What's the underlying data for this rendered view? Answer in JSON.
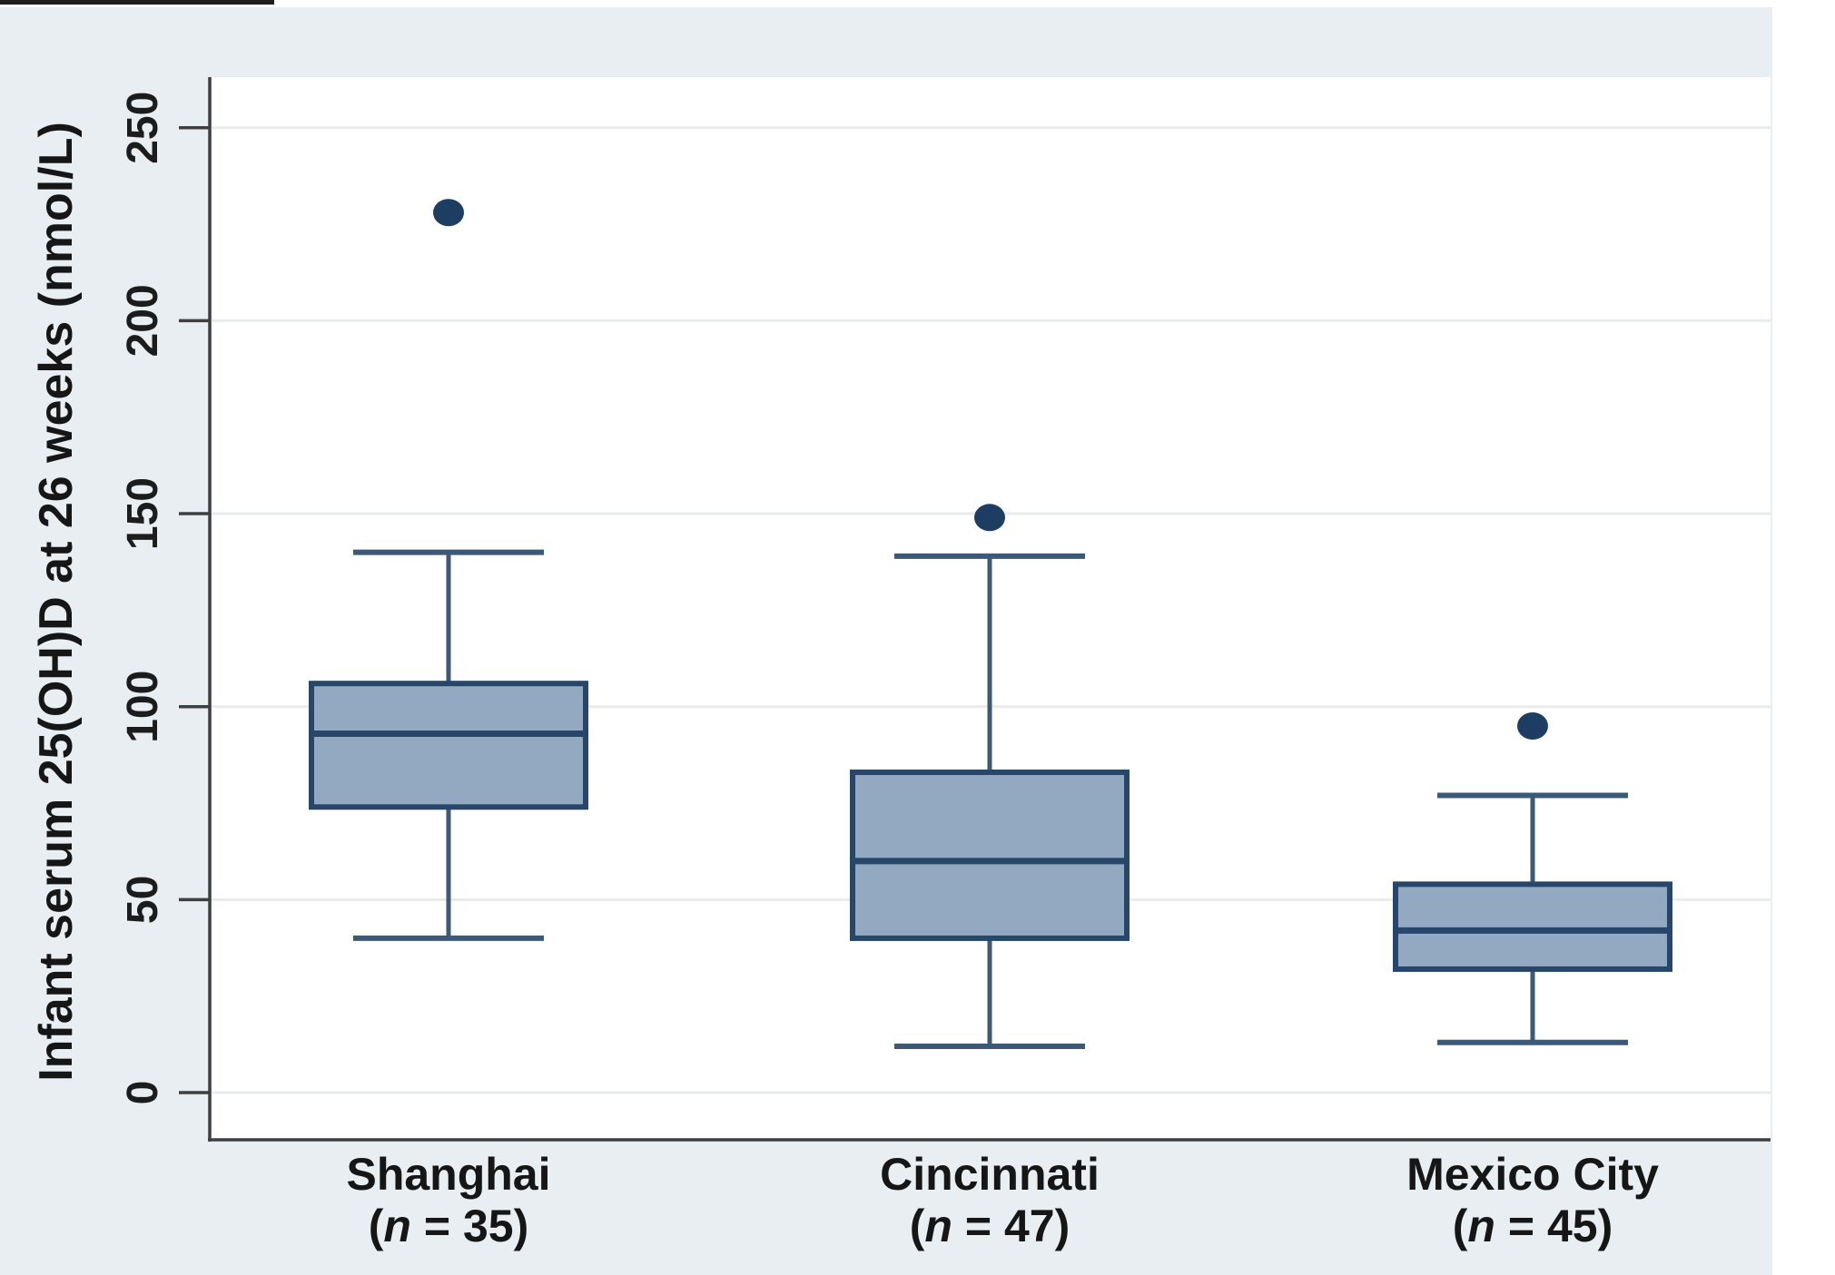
{
  "chart_data": {
    "type": "box",
    "title": "",
    "ylabel": "Infant serum 25(OH)D at 26 weeks (nmol/L)",
    "xlabel": "",
    "ylim": [
      -12,
      263
    ],
    "yticks": [
      0,
      50,
      100,
      150,
      200,
      250
    ],
    "grid": "horizontal",
    "legend": "none",
    "categories": [
      "Shanghai",
      "Cincinnati",
      "Mexico City"
    ],
    "groups": [
      {
        "label": "Shanghai",
        "n": 35,
        "n_label": "(n = 35)",
        "n_label_parts": [
          "(",
          "n",
          " = 35)"
        ],
        "whisker_low": 40,
        "q1": 74,
        "median": 93,
        "q3": 106,
        "whisker_high": 140,
        "outliers": [
          228
        ]
      },
      {
        "label": "Cincinnati",
        "n": 47,
        "n_label": "(n = 47)",
        "n_label_parts": [
          "(",
          "n",
          " = 47)"
        ],
        "whisker_low": 12,
        "q1": 40,
        "median": 60,
        "q3": 83,
        "whisker_high": 139,
        "outliers": [
          149
        ]
      },
      {
        "label": "Mexico City",
        "n": 45,
        "n_label": "(n = 45)",
        "n_label_parts": [
          "(",
          "n",
          " = 45)"
        ],
        "whisker_low": 13,
        "q1": 32,
        "median": 42,
        "q3": 54,
        "whisker_high": 77,
        "outliers": [
          95
        ]
      }
    ],
    "colors": {
      "box_fill": "#92a9c1",
      "box_border": "#26466a",
      "median": "#26466a",
      "whisker": "#3c5a77",
      "outlier": "#1d3e62",
      "gridline": "#e9eced",
      "axis": "#3f3f3f",
      "text": "#1c1c1c",
      "figure_bg": "#e8eef2",
      "plot_bg": "#ffffff"
    }
  }
}
